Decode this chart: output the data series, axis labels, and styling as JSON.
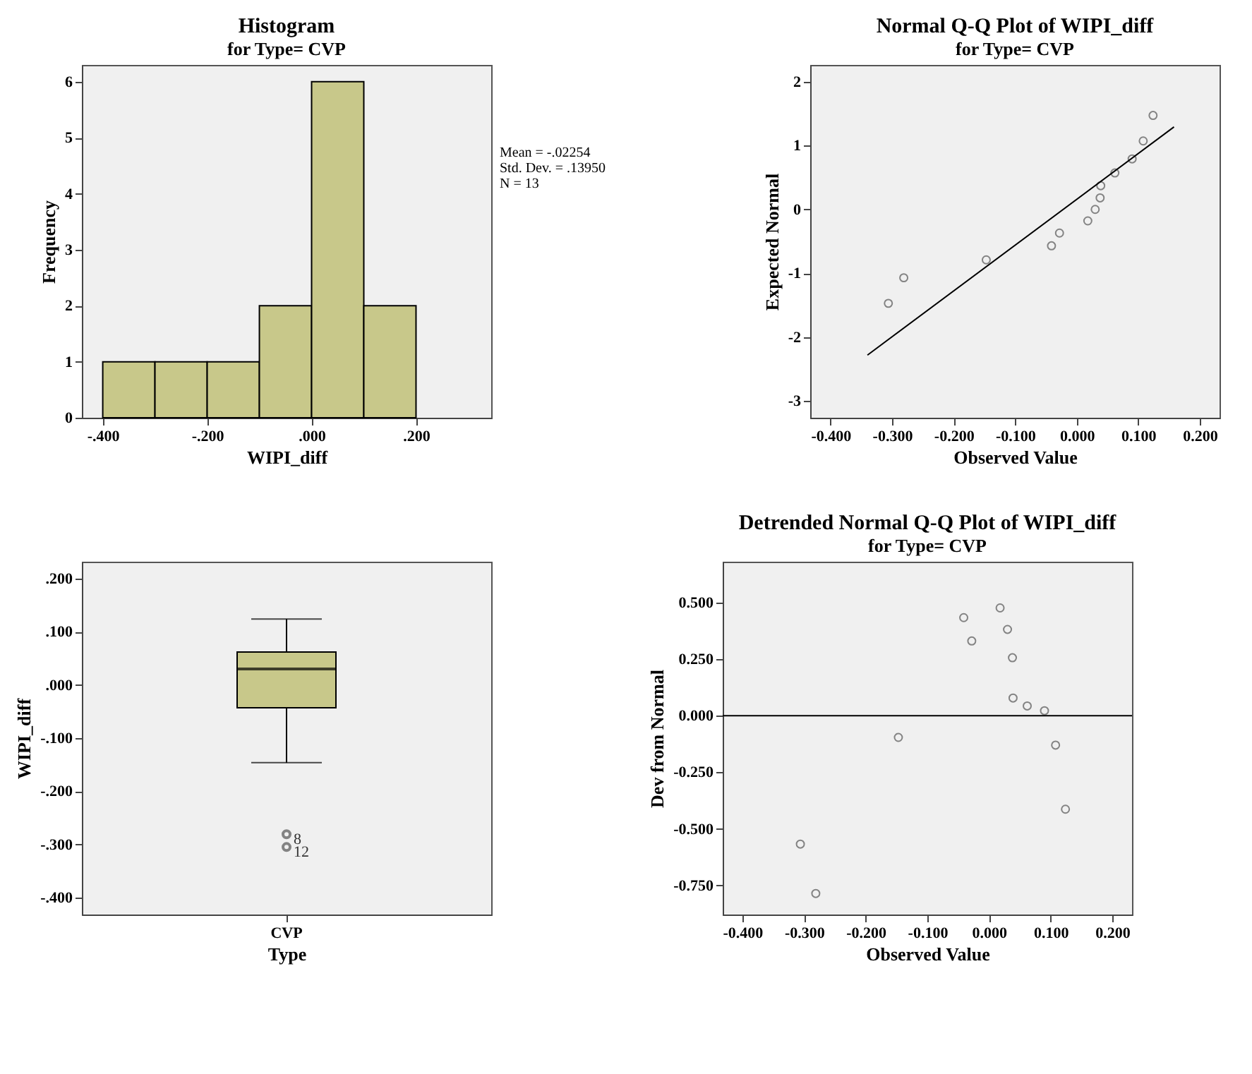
{
  "chart_data": [
    {
      "type": "histogram",
      "title": "Histogram",
      "subtitle": "for Type= CVP",
      "xlabel": "WIPI_diff",
      "ylabel": "Frequency",
      "bins": [
        -0.4,
        -0.3,
        -0.2,
        -0.1,
        0,
        0.1,
        0.2
      ],
      "values": [
        1,
        1,
        1,
        2,
        6,
        2
      ],
      "color": "#c8c88a",
      "xlim": [
        -0.44,
        0.344
      ],
      "ylim": [
        0,
        6.3
      ],
      "xticks": [
        {
          "value": -0.4,
          "label": "-.400"
        },
        {
          "value": -0.2,
          "label": "-.200"
        },
        {
          "value": 0,
          "label": ".000"
        },
        {
          "value": 0.2,
          "label": ".200"
        }
      ],
      "yticks": [
        0,
        1,
        2,
        3,
        4,
        5,
        6
      ],
      "annotations": [
        "Mean = -.02254",
        "Std. Dev. = .13950",
        "N = 13"
      ]
    },
    {
      "type": "scatter",
      "title": "Normal Q-Q Plot of WIPI_diff",
      "subtitle": "for Type= CVP",
      "xlabel": "Observed Value",
      "ylabel": "Expected Normal",
      "x": [
        -0.306,
        -0.281,
        -0.147,
        -0.041,
        -0.028,
        0.018,
        0.03,
        0.038,
        0.039,
        0.062,
        0.09,
        0.108,
        0.124
      ],
      "series": [
        {
          "color": "#555555",
          "marker": "circle",
          "values": [
            -1.47,
            -1.07,
            -0.79,
            -0.57,
            -0.37,
            -0.18,
            0,
            0.18,
            0.37,
            0.57,
            0.79,
            1.07,
            1.47
          ]
        },
        {
          "type": "line",
          "color": "#000000",
          "x": [
            -0.34,
            0.158
          ],
          "values": [
            -2.28,
            1.29
          ]
        }
      ],
      "xlim": [
        -0.433,
        0.232
      ],
      "ylim": [
        -3.26,
        2.26
      ],
      "xticks": [
        {
          "value": -0.4,
          "label": "-0.400"
        },
        {
          "value": -0.3,
          "label": "-0.300"
        },
        {
          "value": -0.2,
          "label": "-0.200"
        },
        {
          "value": -0.1,
          "label": "-0.100"
        },
        {
          "value": 0,
          "label": "0.000"
        },
        {
          "value": 0.1,
          "label": "0.100"
        },
        {
          "value": 0.2,
          "label": "0.200"
        }
      ],
      "yticks": [
        -3,
        -2,
        -1,
        0,
        1,
        2
      ]
    },
    {
      "type": "box",
      "xlabel": "Type",
      "ylabel": "WIPI_diff",
      "categories": [
        "CVP"
      ],
      "color": "#c8c88a",
      "boxes": [
        {
          "low": -0.146,
          "q1": -0.043,
          "median": 0.03,
          "q3": 0.062,
          "high": 0.124,
          "outliers": [
            -0.281,
            -0.305
          ]
        }
      ],
      "ylim": [
        -0.432,
        0.232
      ],
      "yticks": [
        {
          "value": -0.4,
          "label": "-.400"
        },
        {
          "value": -0.3,
          "label": "-.300"
        },
        {
          "value": -0.2,
          "label": "-.200"
        },
        {
          "value": -0.1,
          "label": "-.100"
        },
        {
          "value": 0,
          "label": ".000"
        },
        {
          "value": 0.1,
          "label": ".100"
        },
        {
          "value": 0.2,
          "label": ".200"
        }
      ],
      "annotations": [
        "8",
        "12"
      ]
    },
    {
      "type": "scatter",
      "title": "Detrended Normal Q-Q Plot of WIPI_diff",
      "subtitle": "for Type= CVP",
      "xlabel": "Observed Value",
      "ylabel": "Dev from Normal",
      "x": [
        -0.306,
        -0.281,
        -0.147,
        -0.041,
        -0.028,
        0.018,
        0.03,
        0.038,
        0.039,
        0.062,
        0.09,
        0.108,
        0.124
      ],
      "series": [
        {
          "color": "#555555",
          "values": [
            -0.567,
            -0.785,
            -0.096,
            0.433,
            0.33,
            0.476,
            0.381,
            0.256,
            0.078,
            0.043,
            0.022,
            -0.13,
            -0.413
          ]
        }
      ],
      "marker": "circle",
      "xlim": [
        -0.432,
        0.232
      ],
      "ylim": [
        -0.878,
        0.68
      ],
      "xticks": [
        {
          "value": -0.4,
          "label": "-0.400"
        },
        {
          "value": -0.3,
          "label": "-0.300"
        },
        {
          "value": -0.2,
          "label": "-0.200"
        },
        {
          "value": -0.1,
          "label": "-0.100"
        },
        {
          "value": 0,
          "label": "0.000"
        },
        {
          "value": 0.1,
          "label": "0.100"
        },
        {
          "value": 0.2,
          "label": "0.200"
        }
      ],
      "yticks": [
        {
          "value": -0.75,
          "label": "-0.750"
        },
        {
          "value": -0.5,
          "label": "-0.500"
        },
        {
          "value": -0.25,
          "label": "-0.250"
        },
        {
          "value": 0,
          "label": "0.000"
        },
        {
          "value": 0.25,
          "label": "0.250"
        },
        {
          "value": 0.5,
          "label": "0.500"
        }
      ],
      "ref_lines": [
        {
          "axis": "y",
          "value": 0,
          "color": "#000000"
        }
      ]
    }
  ]
}
